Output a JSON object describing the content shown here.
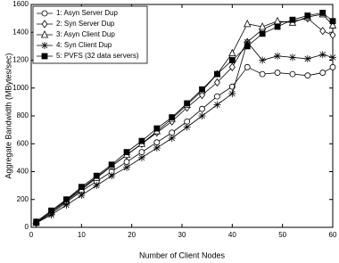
{
  "chart_data": {
    "type": "line",
    "xlabel": "Number of Client Nodes",
    "ylabel": "Aggregate Bandwidth (MBytes/sec)",
    "x": [
      1,
      4,
      7,
      10,
      13,
      16,
      19,
      22,
      25,
      28,
      31,
      34,
      37,
      40,
      43,
      46,
      49,
      52,
      55,
      58,
      60
    ],
    "xlim": [
      0,
      60
    ],
    "xticks": [
      0,
      10,
      20,
      30,
      40,
      50,
      60
    ],
    "ylim": [
      0,
      1600
    ],
    "yticks": [
      0,
      200,
      400,
      600,
      800,
      1000,
      1200,
      1400,
      1600
    ],
    "legend": "upper-left",
    "series": [
      {
        "name": "1: Asyn Server Dup",
        "color": "#000000",
        "marker": "circle",
        "values": [
          30,
          100,
          180,
          260,
          330,
          400,
          470,
          540,
          610,
          680,
          760,
          850,
          940,
          1010,
          1150,
          1100,
          1110,
          1100,
          1090,
          1110,
          1150
        ]
      },
      {
        "name": "2:  Syn Server Dup",
        "color": "#000000",
        "marker": "diamond",
        "values": [
          35,
          110,
          195,
          280,
          360,
          440,
          520,
          600,
          680,
          760,
          860,
          950,
          1040,
          1150,
          1330,
          1420,
          1470,
          1480,
          1500,
          1410,
          1380
        ]
      },
      {
        "name": "3: Asyn Client Dup",
        "color": "#000000",
        "marker": "triangle",
        "values": [
          35,
          110,
          190,
          270,
          355,
          440,
          520,
          600,
          690,
          780,
          880,
          980,
          1100,
          1250,
          1460,
          1440,
          1480,
          1470,
          1510,
          1530,
          1450
        ]
      },
      {
        "name": "4:  Syn Client Dup",
        "color": "#000000",
        "marker": "asterisk",
        "values": [
          30,
          90,
          160,
          230,
          300,
          370,
          430,
          500,
          570,
          640,
          720,
          800,
          880,
          960,
          1330,
          1200,
          1230,
          1220,
          1210,
          1240,
          1220
        ]
      },
      {
        "name": "5: PVFS (32 data servers)",
        "color": "#000000",
        "marker": "square",
        "values": [
          40,
          120,
          200,
          290,
          370,
          450,
          540,
          620,
          710,
          790,
          890,
          990,
          1100,
          1200,
          1300,
          1390,
          1440,
          1490,
          1520,
          1540,
          1480
        ]
      }
    ]
  }
}
